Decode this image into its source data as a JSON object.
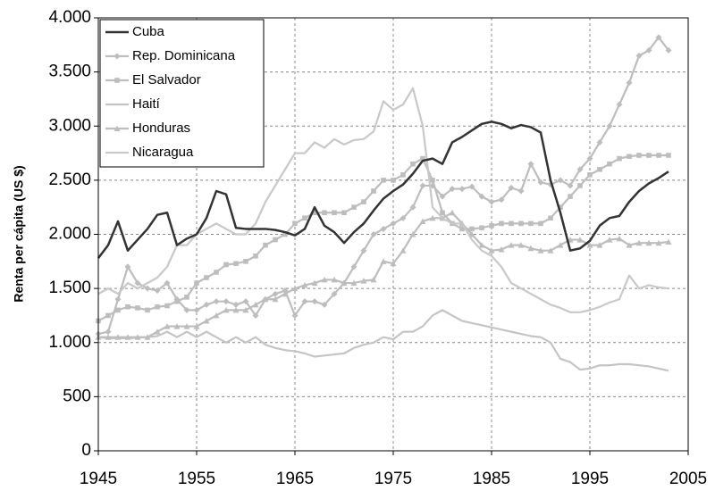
{
  "chart_data": {
    "type": "line",
    "y_label": "Renta per cápita (US $)",
    "x": [
      1945,
      1946,
      1947,
      1948,
      1949,
      1950,
      1951,
      1952,
      1953,
      1954,
      1955,
      1956,
      1957,
      1958,
      1959,
      1960,
      1961,
      1962,
      1963,
      1964,
      1965,
      1966,
      1967,
      1968,
      1969,
      1970,
      1971,
      1972,
      1973,
      1974,
      1975,
      1976,
      1977,
      1978,
      1979,
      1980,
      1981,
      1982,
      1983,
      1984,
      1985,
      1986,
      1987,
      1988,
      1989,
      1990,
      1991,
      1992,
      1993,
      1994,
      1995,
      1996,
      1997,
      1998,
      1999,
      2000,
      2001,
      2002,
      2003
    ],
    "xlim": [
      1945,
      2005
    ],
    "xticks": [
      1945,
      1955,
      1965,
      1975,
      1985,
      1995,
      2005
    ],
    "ylim": [
      0,
      4000
    ],
    "yticks": [
      0,
      500,
      {
        "value": 1000,
        "label": "1.000"
      },
      {
        "value": 1500,
        "label": "1.500"
      },
      {
        "value": 2000,
        "label": "2.000"
      },
      {
        "value": 2500,
        "label": "2.500"
      },
      {
        "value": 3000,
        "label": "3.000"
      },
      {
        "value": 3500,
        "label": "3.500"
      },
      {
        "value": 4000,
        "label": "4.000"
      }
    ],
    "grid": true,
    "legend": "upper left",
    "series": [
      {
        "name": "Cuba",
        "color": "#333333",
        "marker": "none",
        "values": [
          1780,
          1900,
          2120,
          1850,
          1950,
          2050,
          2180,
          2200,
          1900,
          1960,
          2000,
          2150,
          2400,
          2370,
          2060,
          2050,
          2050,
          2050,
          2040,
          2020,
          1990,
          2050,
          2250,
          2080,
          2020,
          1920,
          2020,
          2100,
          2220,
          2330,
          2400,
          2460,
          2560,
          2680,
          2700,
          2650,
          2850,
          2900,
          2960,
          3020,
          3040,
          3020,
          2980,
          3010,
          2990,
          2940,
          2500,
          2200,
          1850,
          1870,
          1940,
          2080,
          2150,
          2170,
          2300,
          2400,
          2470,
          2520,
          2580
        ]
      },
      {
        "name": "Rep. Dominicana",
        "color": "#bdbdbd",
        "marker": "diamond",
        "values": [
          1080,
          1100,
          1400,
          1700,
          1550,
          1500,
          1480,
          1550,
          1400,
          1300,
          1300,
          1350,
          1380,
          1380,
          1350,
          1380,
          1250,
          1400,
          1450,
          1480,
          1250,
          1380,
          1380,
          1350,
          1450,
          1550,
          1700,
          1850,
          2000,
          2050,
          2100,
          2150,
          2250,
          2450,
          2450,
          2350,
          2420,
          2420,
          2440,
          2350,
          2300,
          2320,
          2430,
          2400,
          2650,
          2480,
          2460,
          2500,
          2450,
          2600,
          2700,
          2850,
          3000,
          3200,
          3400,
          3650,
          3700,
          3820,
          3700
        ]
      },
      {
        "name": "El Salvador",
        "color": "#bdbdbd",
        "marker": "square",
        "values": [
          1200,
          1250,
          1300,
          1330,
          1320,
          1300,
          1330,
          1340,
          1380,
          1420,
          1550,
          1600,
          1650,
          1720,
          1730,
          1750,
          1800,
          1900,
          1950,
          2000,
          2100,
          2150,
          2200,
          2200,
          2200,
          2200,
          2250,
          2300,
          2400,
          2500,
          2500,
          2550,
          2650,
          2700,
          2500,
          2200,
          2100,
          2050,
          2050,
          2060,
          2080,
          2100,
          2100,
          2100,
          2100,
          2100,
          2150,
          2250,
          2350,
          2450,
          2550,
          2600,
          2650,
          2700,
          2720,
          2730,
          2730,
          2730,
          2730
        ]
      },
      {
        "name": "Haití",
        "color": "#c4c4c4",
        "marker": "none",
        "values": [
          1050,
          1040,
          1040,
          1040,
          1045,
          1050,
          1060,
          1100,
          1050,
          1100,
          1050,
          1100,
          1050,
          1000,
          1050,
          1000,
          1050,
          980,
          950,
          930,
          920,
          900,
          870,
          880,
          890,
          900,
          950,
          980,
          1000,
          1050,
          1030,
          1100,
          1100,
          1150,
          1250,
          1300,
          1250,
          1200,
          1180,
          1160,
          1140,
          1120,
          1100,
          1080,
          1060,
          1050,
          1000,
          850,
          820,
          750,
          760,
          790,
          790,
          800,
          800,
          790,
          780,
          760,
          740
        ]
      },
      {
        "name": "Honduras",
        "color": "#bdbdbd",
        "marker": "triangle",
        "values": [
          1050,
          1050,
          1050,
          1050,
          1050,
          1050,
          1100,
          1150,
          1150,
          1150,
          1150,
          1200,
          1250,
          1300,
          1300,
          1300,
          1350,
          1400,
          1400,
          1450,
          1500,
          1530,
          1550,
          1580,
          1580,
          1550,
          1550,
          1570,
          1580,
          1750,
          1730,
          1850,
          2000,
          2120,
          2150,
          2150,
          2200,
          2100,
          2000,
          1900,
          1850,
          1860,
          1900,
          1900,
          1870,
          1850,
          1850,
          1900,
          1950,
          1950,
          1900,
          1900,
          1950,
          1960,
          1900,
          1920,
          1920,
          1920,
          1930
        ]
      },
      {
        "name": "Nicaragua",
        "color": "#c8c8c8",
        "marker": "none",
        "values": [
          1450,
          1500,
          1450,
          1550,
          1500,
          1550,
          1600,
          1700,
          1900,
          1900,
          2000,
          2050,
          2100,
          2050,
          2000,
          2000,
          2100,
          2300,
          2450,
          2600,
          2750,
          2750,
          2850,
          2800,
          2880,
          2830,
          2870,
          2880,
          2950,
          3230,
          3150,
          3200,
          3350,
          3000,
          2250,
          2150,
          2100,
          2100,
          1950,
          1850,
          1800,
          1700,
          1550,
          1500,
          1450,
          1400,
          1350,
          1320,
          1280,
          1280,
          1300,
          1330,
          1370,
          1400,
          1620,
          1500,
          1530,
          1510,
          1500
        ]
      }
    ]
  }
}
